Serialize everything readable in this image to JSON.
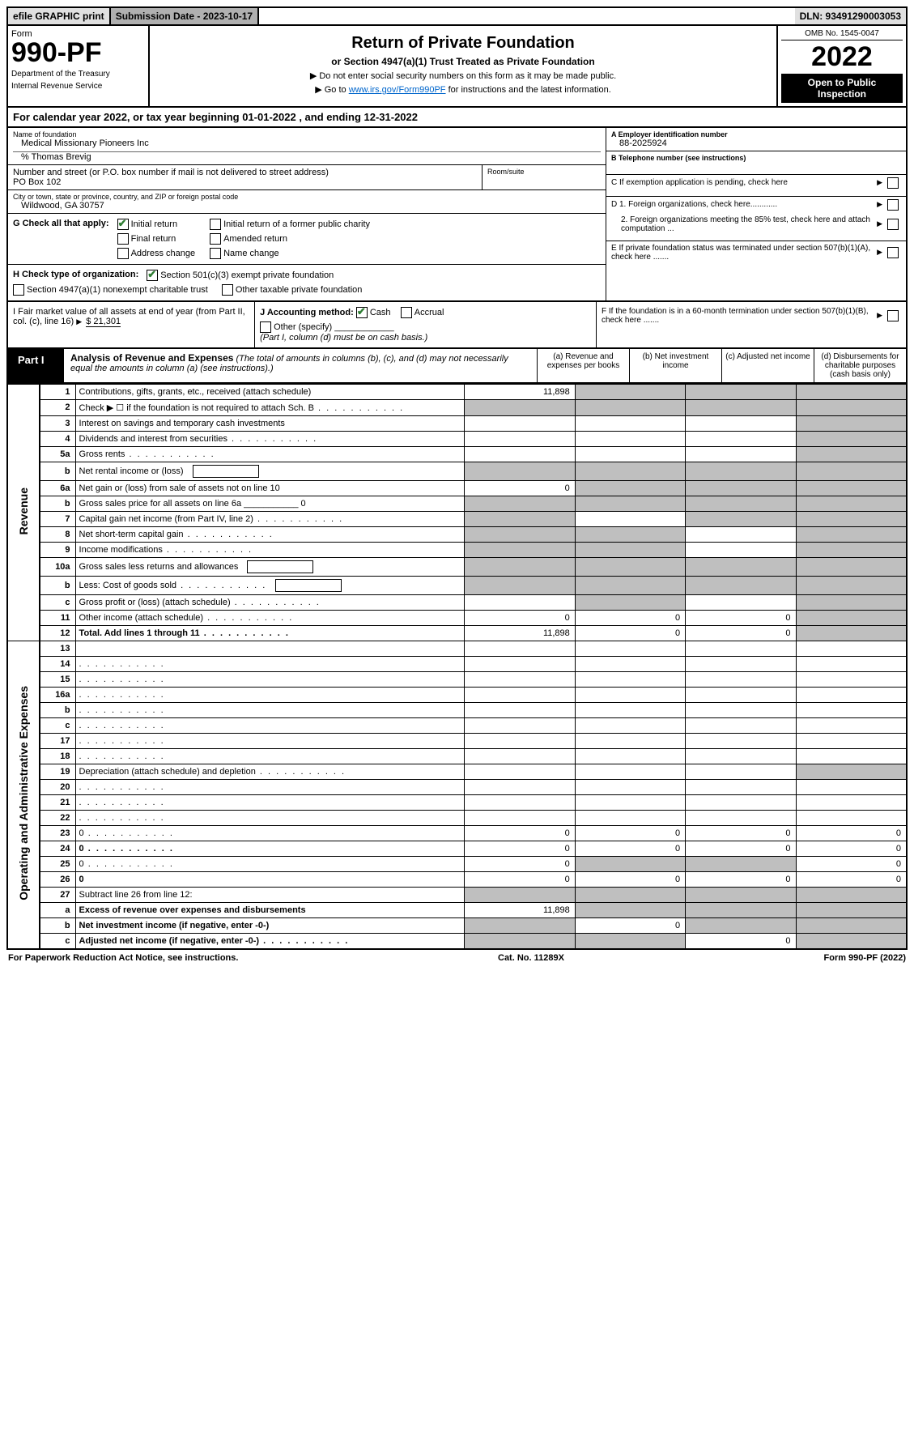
{
  "top": {
    "efile": "efile GRAPHIC print",
    "submission": "Submission Date - 2023-10-17",
    "dln": "DLN: 93491290003053"
  },
  "header": {
    "form_word": "Form",
    "form_num": "990-PF",
    "dept1": "Department of the Treasury",
    "dept2": "Internal Revenue Service",
    "title": "Return of Private Foundation",
    "subtitle": "or Section 4947(a)(1) Trust Treated as Private Foundation",
    "instr1": "▶ Do not enter social security numbers on this form as it may be made public.",
    "instr2_pre": "▶ Go to ",
    "instr2_link": "www.irs.gov/Form990PF",
    "instr2_post": " for instructions and the latest information.",
    "omb": "OMB No. 1545-0047",
    "year": "2022",
    "open": "Open to Public Inspection"
  },
  "cal": {
    "text": "For calendar year 2022, or tax year beginning 01-01-2022             , and ending 12-31-2022"
  },
  "info": {
    "name_lbl": "Name of foundation",
    "name_val": "Medical Missionary Pioneers Inc",
    "pct": "% Thomas Brevig",
    "addr_lbl": "Number and street (or P.O. box number if mail is not delivered to street address)",
    "addr_val": "PO Box 102",
    "room_lbl": "Room/suite",
    "city_lbl": "City or town, state or province, country, and ZIP or foreign postal code",
    "city_val": "Wildwood, GA  30757",
    "a_lbl": "A Employer identification number",
    "a_val": "88-2025924",
    "b_lbl": "B Telephone number (see instructions)",
    "c_lbl": "C If exemption application is pending, check here",
    "d1": "D 1. Foreign organizations, check here............",
    "d2": "2. Foreign organizations meeting the 85% test, check here and attach computation ...",
    "e": "E  If private foundation status was terminated under section 507(b)(1)(A), check here .......",
    "f": "F  If the foundation is in a 60-month termination under section 507(b)(1)(B), check here .......",
    "g_lbl": "G Check all that apply:",
    "g_initial": "Initial return",
    "g_initial_former": "Initial return of a former public charity",
    "g_final": "Final return",
    "g_amended": "Amended return",
    "g_address": "Address change",
    "g_name": "Name change",
    "h_lbl": "H Check type of organization:",
    "h_501c3": "Section 501(c)(3) exempt private foundation",
    "h_4947": "Section 4947(a)(1) nonexempt charitable trust",
    "h_other_tax": "Other taxable private foundation",
    "i_lbl": "I Fair market value of all assets at end of year (from Part II, col. (c), line 16)",
    "i_val": "$  21,301",
    "j_lbl": "J Accounting method:",
    "j_cash": "Cash",
    "j_accrual": "Accrual",
    "j_other": "Other (specify)",
    "j_note": "(Part I, column (d) must be on cash basis.)"
  },
  "part1": {
    "label": "Part I",
    "title": "Analysis of Revenue and Expenses",
    "note": " (The total of amounts in columns (b), (c), and (d) may not necessarily equal the amounts in column (a) (see instructions).)",
    "col_a": "(a)  Revenue and expenses per books",
    "col_b": "(b)  Net investment income",
    "col_c": "(c)  Adjusted net income",
    "col_d": "(d)  Disbursements for charitable purposes (cash basis only)"
  },
  "sides": {
    "revenue": "Revenue",
    "expenses": "Operating and Administrative Expenses"
  },
  "rows": [
    {
      "n": "1",
      "d": "Contributions, gifts, grants, etc., received (attach schedule)",
      "a": "11,898",
      "b_na": true,
      "c_na": true,
      "d_na": true
    },
    {
      "n": "2",
      "d": "Check ▶ ☐ if the foundation is not required to attach Sch. B",
      "dots": true,
      "a_na": true,
      "b_na": true,
      "c_na": true,
      "d_na": true
    },
    {
      "n": "3",
      "d": "Interest on savings and temporary cash investments",
      "a": "",
      "b": "",
      "c": "",
      "d_na": true
    },
    {
      "n": "4",
      "d": "Dividends and interest from securities",
      "dots": true,
      "a": "",
      "b": "",
      "c": "",
      "d_na": true
    },
    {
      "n": "5a",
      "d": "Gross rents",
      "dots": true,
      "a": "",
      "b": "",
      "c": "",
      "d_na": true
    },
    {
      "n": "b",
      "d": "Net rental income or (loss)",
      "inline_box": true,
      "a_na": true,
      "b_na": true,
      "c_na": true,
      "d_na": true
    },
    {
      "n": "6a",
      "d": "Net gain or (loss) from sale of assets not on line 10",
      "a": "0",
      "b_na": true,
      "c_na": true,
      "d_na": true
    },
    {
      "n": "b",
      "d": "Gross sales price for all assets on line 6a ___________ 0",
      "a_na": true,
      "b_na": true,
      "c_na": true,
      "d_na": true
    },
    {
      "n": "7",
      "d": "Capital gain net income (from Part IV, line 2)",
      "dots": true,
      "a_na": true,
      "b": "",
      "c_na": true,
      "d_na": true
    },
    {
      "n": "8",
      "d": "Net short-term capital gain",
      "dots": true,
      "a_na": true,
      "b_na": true,
      "c": "",
      "d_na": true
    },
    {
      "n": "9",
      "d": "Income modifications",
      "dots": true,
      "a_na": true,
      "b_na": true,
      "c": "",
      "d_na": true
    },
    {
      "n": "10a",
      "d": "Gross sales less returns and allowances",
      "inline_box": true,
      "a_na": true,
      "b_na": true,
      "c_na": true,
      "d_na": true
    },
    {
      "n": "b",
      "d": "Less: Cost of goods sold",
      "dots": true,
      "inline_box": true,
      "a_na": true,
      "b_na": true,
      "c_na": true,
      "d_na": true
    },
    {
      "n": "c",
      "d": "Gross profit or (loss) (attach schedule)",
      "dots": true,
      "a": "",
      "b_na": true,
      "c": "",
      "d_na": true
    },
    {
      "n": "11",
      "d": "Other income (attach schedule)",
      "dots": true,
      "a": "0",
      "b": "0",
      "c": "0",
      "d_na": true
    },
    {
      "n": "12",
      "d": "Total. Add lines 1 through 11",
      "dots": true,
      "bold": true,
      "a": "11,898",
      "b": "0",
      "c": "0",
      "d_na": true
    },
    {
      "n": "13",
      "d": "",
      "a": "",
      "b": "",
      "c": ""
    },
    {
      "n": "14",
      "d": "",
      "dots": true,
      "a": "",
      "b": "",
      "c": ""
    },
    {
      "n": "15",
      "d": "",
      "dots": true,
      "a": "",
      "b": "",
      "c": ""
    },
    {
      "n": "16a",
      "d": "",
      "dots": true,
      "a": "",
      "b": "",
      "c": ""
    },
    {
      "n": "b",
      "d": "",
      "dots": true,
      "a": "",
      "b": "",
      "c": ""
    },
    {
      "n": "c",
      "d": "",
      "dots": true,
      "a": "",
      "b": "",
      "c": ""
    },
    {
      "n": "17",
      "d": "",
      "dots": true,
      "a": "",
      "b": "",
      "c": ""
    },
    {
      "n": "18",
      "d": "",
      "dots": true,
      "a": "",
      "b": "",
      "c": ""
    },
    {
      "n": "19",
      "d": "Depreciation (attach schedule) and depletion",
      "dots": true,
      "a": "",
      "b": "",
      "c": "",
      "d_na": true
    },
    {
      "n": "20",
      "d": "",
      "dots": true,
      "a": "",
      "b": "",
      "c": ""
    },
    {
      "n": "21",
      "d": "",
      "dots": true,
      "a": "",
      "b": "",
      "c": ""
    },
    {
      "n": "22",
      "d": "",
      "dots": true,
      "a": "",
      "b": "",
      "c": ""
    },
    {
      "n": "23",
      "d": "0",
      "dots": true,
      "a": "0",
      "b": "0",
      "c": "0"
    },
    {
      "n": "24",
      "d": "0",
      "dots": true,
      "bold": true,
      "a": "0",
      "b": "0",
      "c": "0"
    },
    {
      "n": "25",
      "d": "0",
      "dots": true,
      "a": "0",
      "b_na": true,
      "c_na": true
    },
    {
      "n": "26",
      "d": "0",
      "bold": true,
      "a": "0",
      "b": "0",
      "c": "0"
    },
    {
      "n": "27",
      "d": "Subtract line 26 from line 12:",
      "a_na": true,
      "b_na": true,
      "c_na": true,
      "d_na": true
    },
    {
      "n": "a",
      "d": "Excess of revenue over expenses and disbursements",
      "bold": true,
      "a": "11,898",
      "b_na": true,
      "c_na": true,
      "d_na": true
    },
    {
      "n": "b",
      "d": "Net investment income (if negative, enter -0-)",
      "bold": true,
      "a_na": true,
      "b": "0",
      "c_na": true,
      "d_na": true
    },
    {
      "n": "c",
      "d": "Adjusted net income (if negative, enter -0-)",
      "dots": true,
      "bold": true,
      "a_na": true,
      "b_na": true,
      "c": "0",
      "d_na": true
    }
  ],
  "footer": {
    "left": "For Paperwork Reduction Act Notice, see instructions.",
    "mid": "Cat. No. 11289X",
    "right": "Form 990-PF (2022)"
  }
}
